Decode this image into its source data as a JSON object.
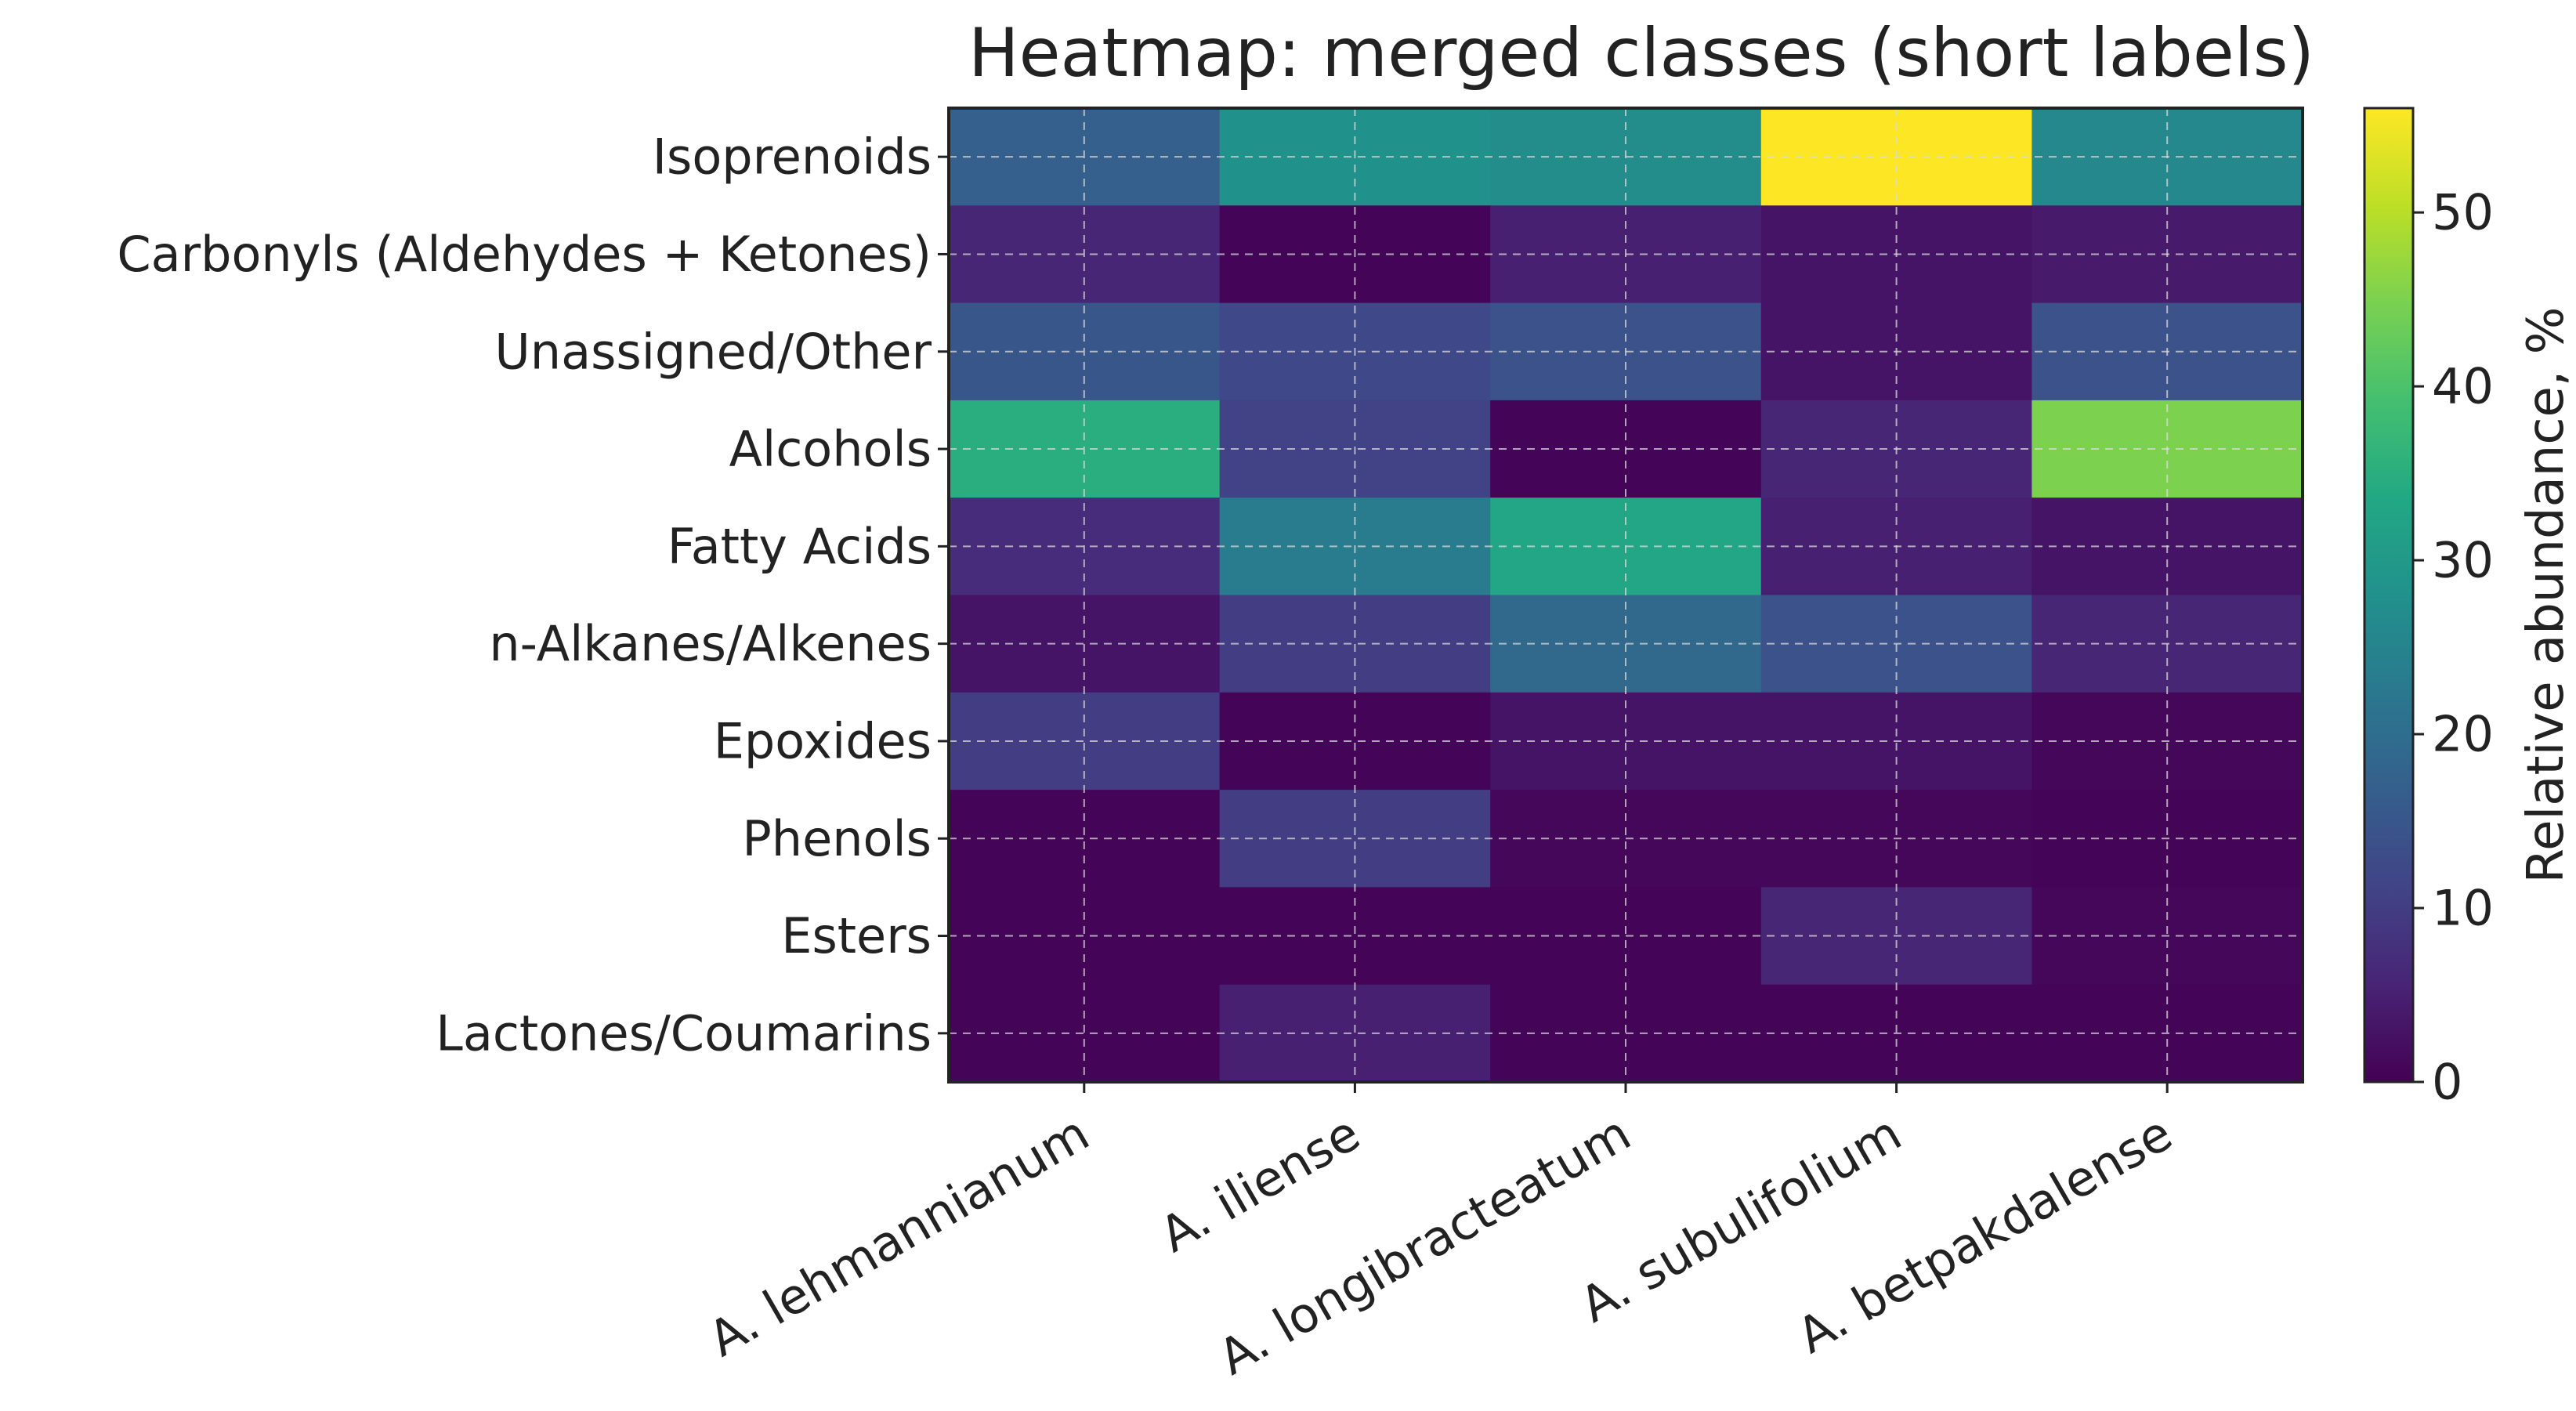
{
  "chart_data": {
    "type": "heatmap",
    "title": "Heatmap: merged classes (short labels)",
    "xlabel": "",
    "ylabel": "",
    "grid": true,
    "colormap": "viridis",
    "x_categories": [
      "A. lehmannianum",
      "A. iliense",
      "A. longibracteatum",
      "A. subulifolium",
      "A. betpakdalense"
    ],
    "y_categories": [
      "Isoprenoids",
      "Carbonyls (Aldehydes + Ketones)",
      "Unassigned/Other",
      "Alcohols",
      "Fatty Acids",
      "n-Alkanes/Alkenes",
      "Epoxides",
      "Phenols",
      "Esters",
      "Lactones/Coumarins"
    ],
    "values": [
      [
        17,
        28,
        27,
        56,
        26
      ],
      [
        6,
        0.5,
        5,
        3,
        4
      ],
      [
        15,
        12,
        14,
        3,
        14
      ],
      [
        35,
        11,
        0.5,
        6,
        45
      ],
      [
        7,
        23,
        33,
        5,
        3
      ],
      [
        3,
        10,
        19,
        14,
        6
      ],
      [
        10,
        0.5,
        3,
        3,
        1
      ],
      [
        0.5,
        10,
        1,
        1,
        0.5
      ],
      [
        0.5,
        0.5,
        0.5,
        6,
        1
      ],
      [
        0.5,
        5,
        0.5,
        0.5,
        0.5
      ]
    ],
    "colorbar": {
      "label": "Relative abundance, %",
      "range": [
        0,
        56
      ],
      "ticks": [
        0,
        10,
        20,
        30,
        40,
        50
      ]
    }
  }
}
